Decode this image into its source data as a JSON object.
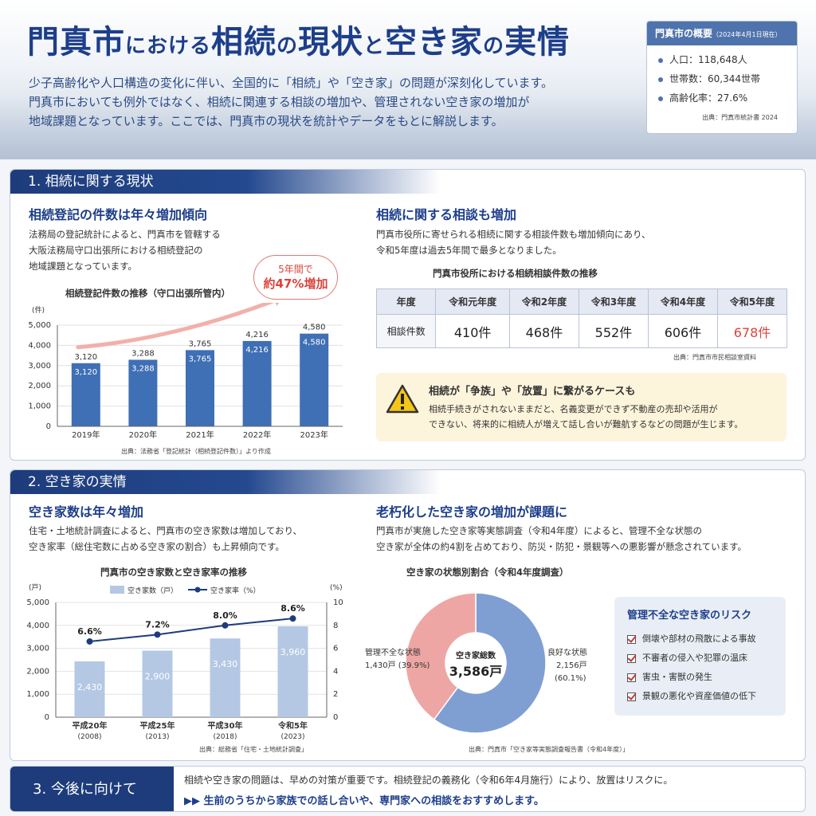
{
  "header": {
    "title_parts": [
      "門真市",
      "における",
      "相続",
      "の",
      "現状",
      "と",
      "空き家",
      "の",
      "実情"
    ],
    "intro": [
      "少子高齢化や人口構造の変化に伴い、全国的に「相続」や「空き家」の問題が深刻化しています。",
      "門真市においても例外ではなく、相続に関連する相談の増加や、管理されない空き家の増加が",
      "地域課題となっています。ここでは、門真市の現状を統計やデータをもとに解説します。"
    ]
  },
  "overview": {
    "title": "門真市の概要",
    "date": "（2024年4月1日現在）",
    "items": [
      "人口：118,648人",
      "世帯数：60,344世帯",
      "高齢化率：27.6%"
    ],
    "source": "出典：門真市統計書 2024"
  },
  "section1": {
    "heading": "1. 相続に関する現状",
    "left": {
      "title": "相続登記の件数は年々増加傾向",
      "text": [
        "法務局の登記統計によると、門真市を管轄する",
        "大阪法務局守口出張所における相続登記の",
        "地域課題となっています。"
      ],
      "bubble_line1": "5年間で",
      "bubble_line2": "約47%増加",
      "source": "出典：法務省「登記統計（相続登記件数）」より作成"
    },
    "right": {
      "title": "相続に関する相談も増加",
      "text": [
        "門真市役所に寄せられる相続に関する相談件数も増加傾向にあり、",
        "令和5年度は過去5年間で最多となりました。"
      ],
      "table_title": "門真市役所における相続相談件数の推移",
      "table_headers": [
        "年度",
        "令和元年度",
        "令和2年度",
        "令和3年度",
        "令和4年度",
        "令和5年度"
      ],
      "row_label": "相談件数",
      "row_values": [
        "410件",
        "468件",
        "552件",
        "606件",
        "678件"
      ],
      "table_source": "出典：門真市市民相談室資料",
      "warning_title": "相続が「争族」や「放置」に繋がるケースも",
      "warning_text": [
        "相続手続きがされないままだと、名義変更ができず不動産の売却や活用が",
        "できない、将来的に相続人が増えて話し合いが難航するなどの問題が生じます。"
      ]
    }
  },
  "section2": {
    "heading": "2. 空き家の実情",
    "left": {
      "title": "空き家数は年々増加",
      "text": [
        "住宅・土地統計調査によると、門真市の空き家数は増加しており、",
        "空き家率（総住宅数に占める空き家の割合）も上昇傾向です。"
      ],
      "source": "出典：総務省「住宅・土地統計調査」"
    },
    "right": {
      "title": "老朽化した空き家の増加が課題に",
      "text": [
        "門真市が実施した空き家等実態調査（令和4年度）によると、管理不全な状態の",
        "空き家が全体の約4割を占めており、防災・防犯・景観等への悪影響が懸念されています。"
      ],
      "source": "出典：門真市「空き家等実態調査報告書（令和4年度）」",
      "risk_title": "管理不全な空き家のリスク",
      "risks": [
        "倒壊や部材の飛散による事故",
        "不審者の侵入や犯罪の温床",
        "害虫・害獣の発生",
        "景観の悪化や資産価値の低下"
      ]
    }
  },
  "section3": {
    "heading": "3. 今後に向けて",
    "text": "相続や空き家の問題は、早めの対策が重要です。相続登記の義務化（令和6年4月施行）により、放置はリスクに。",
    "emphasis": "▶▶ 生前のうちから家族での話し合いや、専門家への相談をおすすめします。"
  },
  "chart_data": [
    {
      "type": "bar",
      "title": "相続登記件数の推移（守口出張所管内）",
      "ylabel": "(件)",
      "categories": [
        "2019年",
        "2020年",
        "2021年",
        "2022年",
        "2023年"
      ],
      "values": [
        3120,
        3288,
        3765,
        4216,
        4580
      ],
      "value_labels": [
        "3,120",
        "3,288",
        "3,765",
        "4,216",
        "4,580"
      ],
      "ylim": [
        0,
        5000
      ],
      "yticks": [
        "0",
        "1,000",
        "2,000",
        "3,000",
        "4,000",
        "5,000"
      ],
      "color": "#3f6fb5"
    },
    {
      "type": "bar",
      "title": "門真市の空き家数と空き家率の推移",
      "ylabel_left": "(戸)",
      "ylabel_right": "(%)",
      "categories": [
        "平成20年",
        "平成25年",
        "平成30年",
        "令和5年"
      ],
      "category_years": [
        "(2008)",
        "(2013)",
        "(2018)",
        "(2023)"
      ],
      "series": [
        {
          "name": "空き家数（戸）",
          "type": "bar",
          "values": [
            2430,
            2900,
            3430,
            3960
          ],
          "labels": [
            "2,430",
            "2,900",
            "3,430",
            "3,960"
          ],
          "color": "#b4c8e4"
        },
        {
          "name": "空き家率（%）",
          "type": "line",
          "values": [
            6.6,
            7.2,
            8.0,
            8.6
          ],
          "labels": [
            "6.6%",
            "7.2%",
            "8.0%",
            "8.6%"
          ],
          "color": "#1e3c7c"
        }
      ],
      "ylim_left": [
        0,
        5000
      ],
      "yticks_left": [
        "0",
        "1,000",
        "2,000",
        "3,000",
        "4,000",
        "5,000"
      ],
      "ylim_right": [
        0,
        10
      ],
      "yticks_right": [
        "0",
        "2",
        "4",
        "6",
        "8",
        "10"
      ]
    },
    {
      "type": "pie",
      "title": "空き家の状態別割合（令和4年度調査）",
      "center_label": "空き家総数",
      "center_value": "3,586戸",
      "slices": [
        {
          "name": "良好な状態",
          "value": 2156,
          "value_label": "2,156戸",
          "pct_label": "(60.1%)",
          "color": "#7f9fd3"
        },
        {
          "name": "管理不全な状態",
          "value": 1430,
          "value_label": "1,430戸 (39.9%)",
          "color": "#eea6a4"
        }
      ]
    }
  ]
}
